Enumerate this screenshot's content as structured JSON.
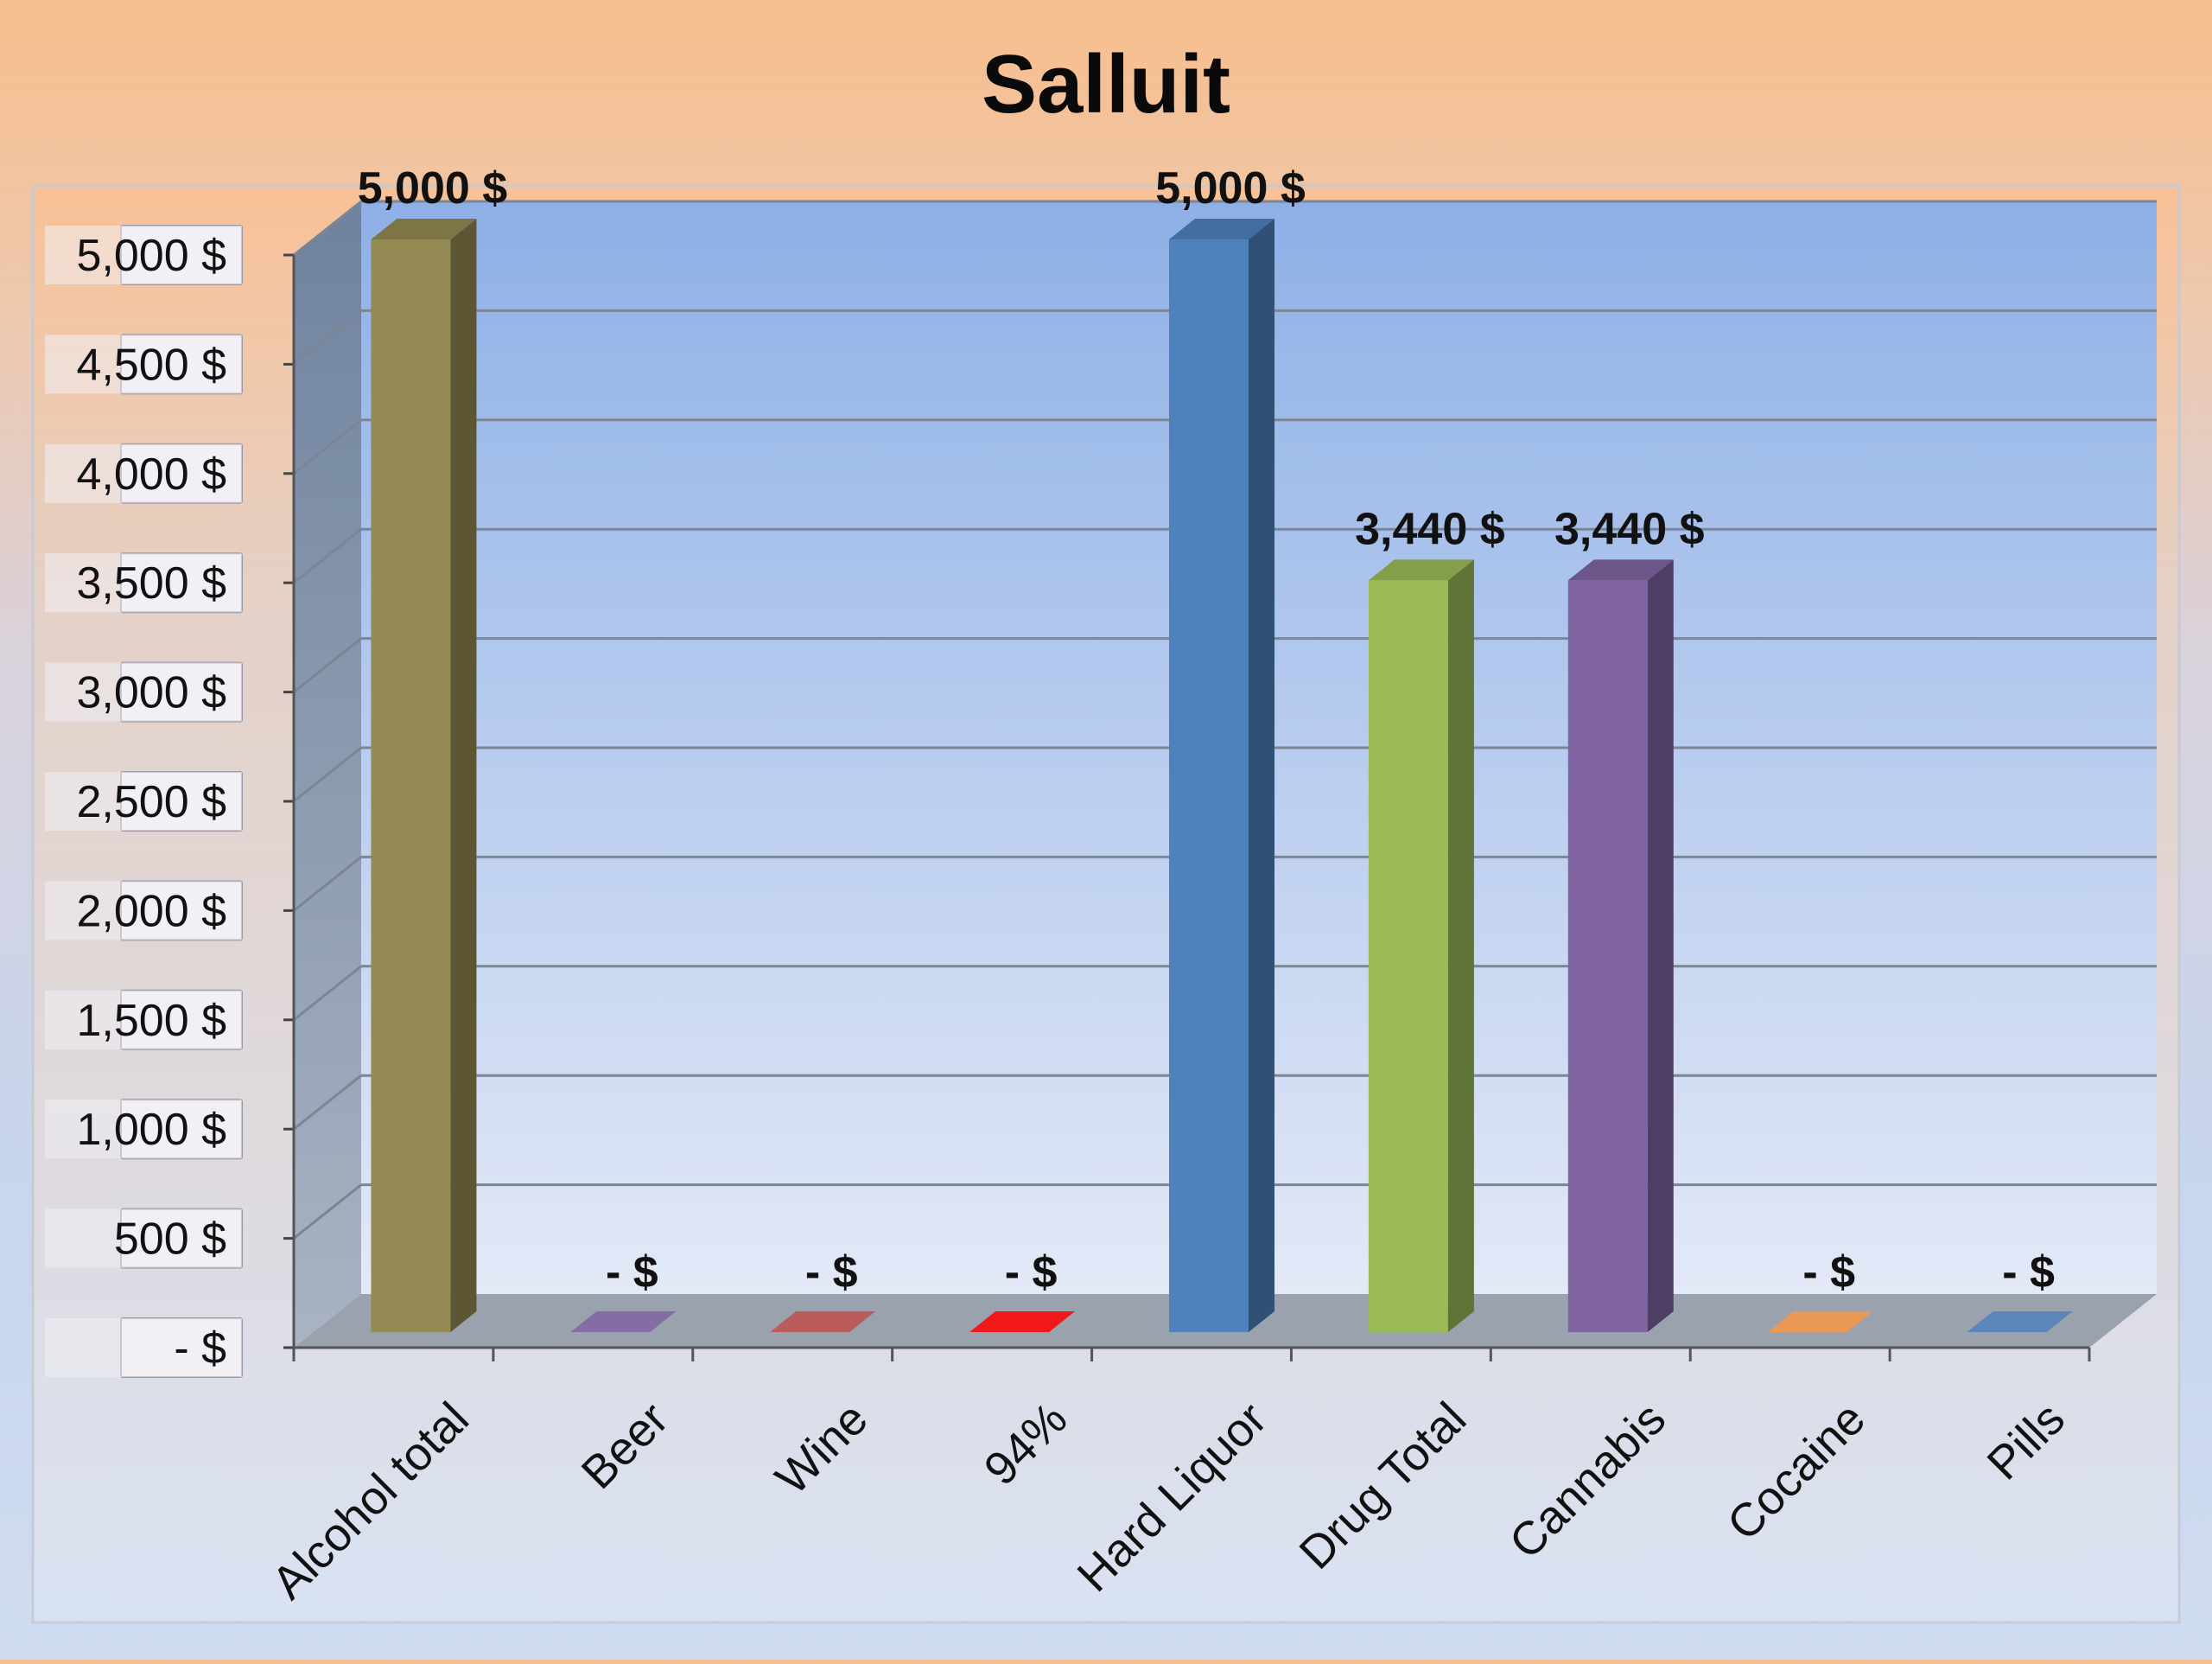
{
  "chart_data": {
    "type": "bar",
    "title": "Salluit",
    "xlabel": "",
    "ylabel": "",
    "ylim": [
      0,
      5000
    ],
    "y_ticks": [
      0,
      500,
      1000,
      1500,
      2000,
      2500,
      3000,
      3500,
      4000,
      4500,
      5000
    ],
    "y_tick_labels": [
      "-   $",
      "500 $",
      "1,000 $",
      "1,500 $",
      "2,000 $",
      "2,500 $",
      "3,000 $",
      "3,500 $",
      "4,000 $",
      "4,500 $",
      "5,000 $"
    ],
    "categories": [
      "Alcohol total",
      "Beer",
      "Wine",
      "94%",
      "Hard Liquor",
      "Drug Total",
      "Cannabis",
      "Cocaine",
      "Pills"
    ],
    "values": [
      5000,
      0,
      0,
      0,
      5000,
      3440,
      3440,
      0,
      0
    ],
    "data_labels": [
      "5,000  $",
      "-    $",
      "-    $",
      "-    $",
      "5,000  $",
      "3,440  $",
      "3,440  $",
      "-    $",
      "-    $"
    ],
    "colors": [
      "#948a54",
      "#8064a2",
      "#c0504d",
      "#ff0000",
      "#4f81bd",
      "#9bbb59",
      "#8064a2",
      "#f79646",
      "#4f81bd"
    ],
    "grid": true,
    "legend": "none",
    "style": "3d-column"
  }
}
